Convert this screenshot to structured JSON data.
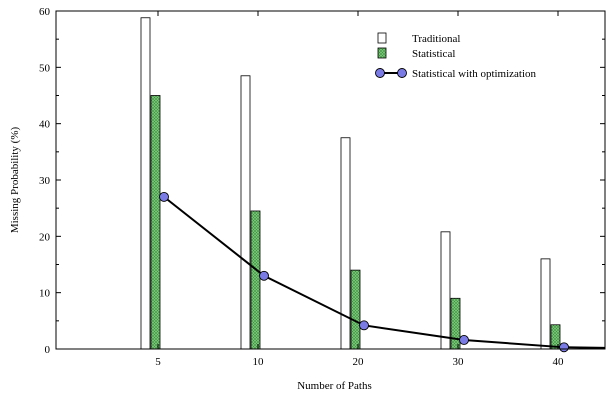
{
  "chart_data": {
    "type": "bar",
    "title": "",
    "xlabel": "Number of Paths",
    "ylabel": "Missing Probability (%)",
    "ylim": [
      0,
      60
    ],
    "yticks": [
      0,
      10,
      20,
      30,
      40,
      50,
      60
    ],
    "categories": [
      "5",
      "10",
      "20",
      "30",
      "40"
    ],
    "legend_position": "top-right",
    "series": [
      {
        "name": "Traditional",
        "kind": "bar",
        "color": "#ffffff",
        "values": [
          58.8,
          48.5,
          37.5,
          20.8,
          16.0
        ]
      },
      {
        "name": "Statistical",
        "kind": "bar",
        "color": "#7fce7f",
        "values": [
          45.0,
          24.5,
          14.0,
          9.0,
          4.3
        ]
      },
      {
        "name": "Statistical with optimization",
        "kind": "line",
        "color": "#7b7be6",
        "values": [
          27.0,
          13.0,
          4.2,
          1.6,
          0.3
        ]
      }
    ]
  }
}
